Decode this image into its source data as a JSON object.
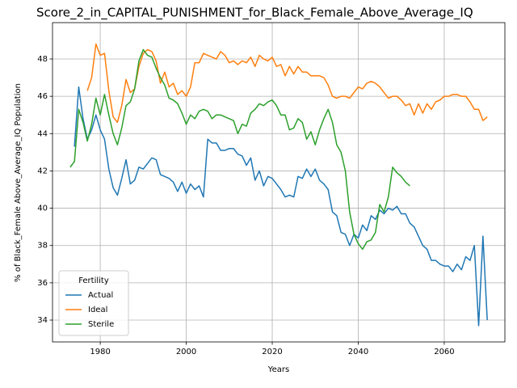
{
  "chart_data": {
    "type": "line",
    "title": "Score_2_in_CAPITAL_PUNISHMENT_for_Black_Female_Above_Average_IQ",
    "xlabel": "Years",
    "ylabel": "% of Black_Female Above_Average_IQ Population",
    "legend_title": "Fertility",
    "legend": "lower left",
    "grid": true,
    "xlim": [
      1968.9,
      2074.1
    ],
    "ylim": [
      32.83,
      49.95
    ],
    "xticks": [
      1980,
      2000,
      2020,
      2040,
      2060
    ],
    "yticks": [
      34,
      36,
      38,
      40,
      42,
      44,
      46,
      48
    ],
    "x": [
      1973,
      1974,
      1975,
      1976,
      1977,
      1978,
      1979,
      1980,
      1981,
      1982,
      1983,
      1984,
      1985,
      1986,
      1987,
      1988,
      1989,
      1990,
      1991,
      1992,
      1993,
      1994,
      1995,
      1996,
      1997,
      1998,
      1999,
      2000,
      2001,
      2002,
      2003,
      2004,
      2005,
      2006,
      2007,
      2008,
      2009,
      2010,
      2011,
      2012,
      2013,
      2014,
      2015,
      2016,
      2017,
      2018,
      2019,
      2020,
      2021,
      2022,
      2023,
      2024,
      2025,
      2026,
      2027,
      2028,
      2029,
      2030,
      2031,
      2032,
      2033,
      2034,
      2035,
      2036,
      2037,
      2038,
      2039,
      2040,
      2041,
      2042,
      2043,
      2044,
      2045,
      2046,
      2047,
      2048,
      2049,
      2050,
      2051,
      2052,
      2053,
      2054,
      2055,
      2056,
      2057,
      2058,
      2059,
      2060,
      2061,
      2062,
      2063,
      2064,
      2065,
      2066,
      2067,
      2068,
      2069,
      2070
    ],
    "series": [
      {
        "name": "Actual",
        "color": "#1f77b4",
        "values": [
          null,
          43.3,
          46.5,
          44.8,
          43.7,
          44.2,
          45.0,
          44.2,
          43.7,
          42.1,
          41.1,
          40.7,
          41.6,
          42.6,
          41.3,
          41.5,
          42.2,
          42.1,
          42.4,
          42.7,
          42.6,
          41.8,
          41.7,
          41.6,
          41.4,
          40.9,
          41.4,
          40.8,
          41.3,
          41.0,
          41.2,
          40.6,
          43.7,
          43.5,
          43.5,
          43.1,
          43.1,
          43.2,
          43.2,
          42.9,
          42.8,
          42.3,
          42.7,
          41.5,
          42.0,
          41.2,
          41.7,
          41.6,
          41.3,
          41.0,
          40.6,
          40.7,
          40.6,
          41.7,
          41.6,
          42.1,
          41.7,
          42.1,
          41.5,
          41.3,
          41.0,
          39.8,
          39.6,
          38.7,
          38.6,
          38.0,
          38.6,
          38.4,
          39.1,
          38.8,
          39.6,
          39.4,
          39.9,
          39.7,
          40.0,
          39.9,
          40.1,
          39.7,
          39.7,
          39.2,
          39.0,
          38.5,
          38.0,
          37.8,
          37.2,
          37.2,
          37.0,
          36.9,
          36.9,
          36.6,
          37.0,
          36.7,
          37.4,
          37.2,
          38.0,
          33.7,
          38.5,
          34.0
        ]
      },
      {
        "name": "Ideal",
        "color": "#ff7f0e",
        "values": [
          null,
          null,
          null,
          null,
          46.3,
          47.0,
          48.8,
          48.2,
          48.3,
          46.3,
          44.9,
          44.6,
          45.5,
          46.9,
          46.2,
          46.4,
          47.6,
          48.3,
          48.5,
          48.4,
          47.9,
          46.7,
          47.3,
          46.5,
          46.7,
          46.1,
          46.3,
          46.0,
          46.5,
          47.8,
          47.8,
          48.3,
          48.2,
          48.1,
          48.0,
          48.4,
          48.2,
          47.8,
          47.9,
          47.7,
          47.9,
          47.8,
          48.1,
          47.6,
          48.2,
          48.0,
          47.9,
          48.1,
          47.6,
          47.7,
          47.1,
          47.6,
          47.2,
          47.6,
          47.3,
          47.3,
          47.1,
          47.1,
          47.1,
          47.0,
          46.6,
          46.0,
          45.9,
          46.0,
          46.0,
          45.9,
          46.2,
          46.5,
          46.4,
          46.7,
          46.8,
          46.7,
          46.5,
          46.2,
          45.9,
          46.0,
          46.0,
          45.8,
          45.5,
          45.6,
          45.0,
          45.6,
          45.1,
          45.6,
          45.3,
          45.7,
          45.8,
          46.0,
          46.0,
          46.1,
          46.1,
          46.0,
          46.0,
          45.7,
          45.3,
          45.3,
          44.7,
          44.9
        ]
      },
      {
        "name": "Sterile",
        "color": "#2ca02c",
        "values": [
          42.2,
          42.5,
          45.3,
          44.6,
          43.6,
          44.5,
          45.9,
          45.0,
          46.1,
          45.0,
          44.0,
          43.4,
          44.3,
          45.5,
          45.7,
          46.4,
          47.9,
          48.5,
          48.2,
          48.1,
          47.5,
          47.0,
          46.6,
          45.9,
          45.8,
          45.6,
          45.1,
          44.5,
          45.0,
          44.8,
          45.2,
          45.3,
          45.2,
          44.8,
          45.0,
          45.0,
          44.9,
          44.8,
          44.7,
          44.0,
          44.5,
          44.4,
          45.1,
          45.3,
          45.6,
          45.5,
          45.7,
          45.8,
          45.5,
          45.0,
          45.0,
          44.2,
          44.3,
          44.8,
          44.6,
          43.7,
          44.1,
          43.4,
          44.2,
          44.8,
          45.3,
          44.6,
          43.4,
          43.0,
          42.0,
          39.8,
          38.6,
          38.1,
          37.8,
          38.2,
          38.3,
          38.7,
          40.2,
          39.8,
          40.6,
          42.2,
          41.9,
          41.7,
          41.4,
          41.2,
          null,
          null,
          null,
          null,
          null,
          null,
          null,
          null,
          null,
          null,
          null,
          null,
          null,
          null,
          null,
          null,
          null,
          null
        ]
      }
    ]
  }
}
